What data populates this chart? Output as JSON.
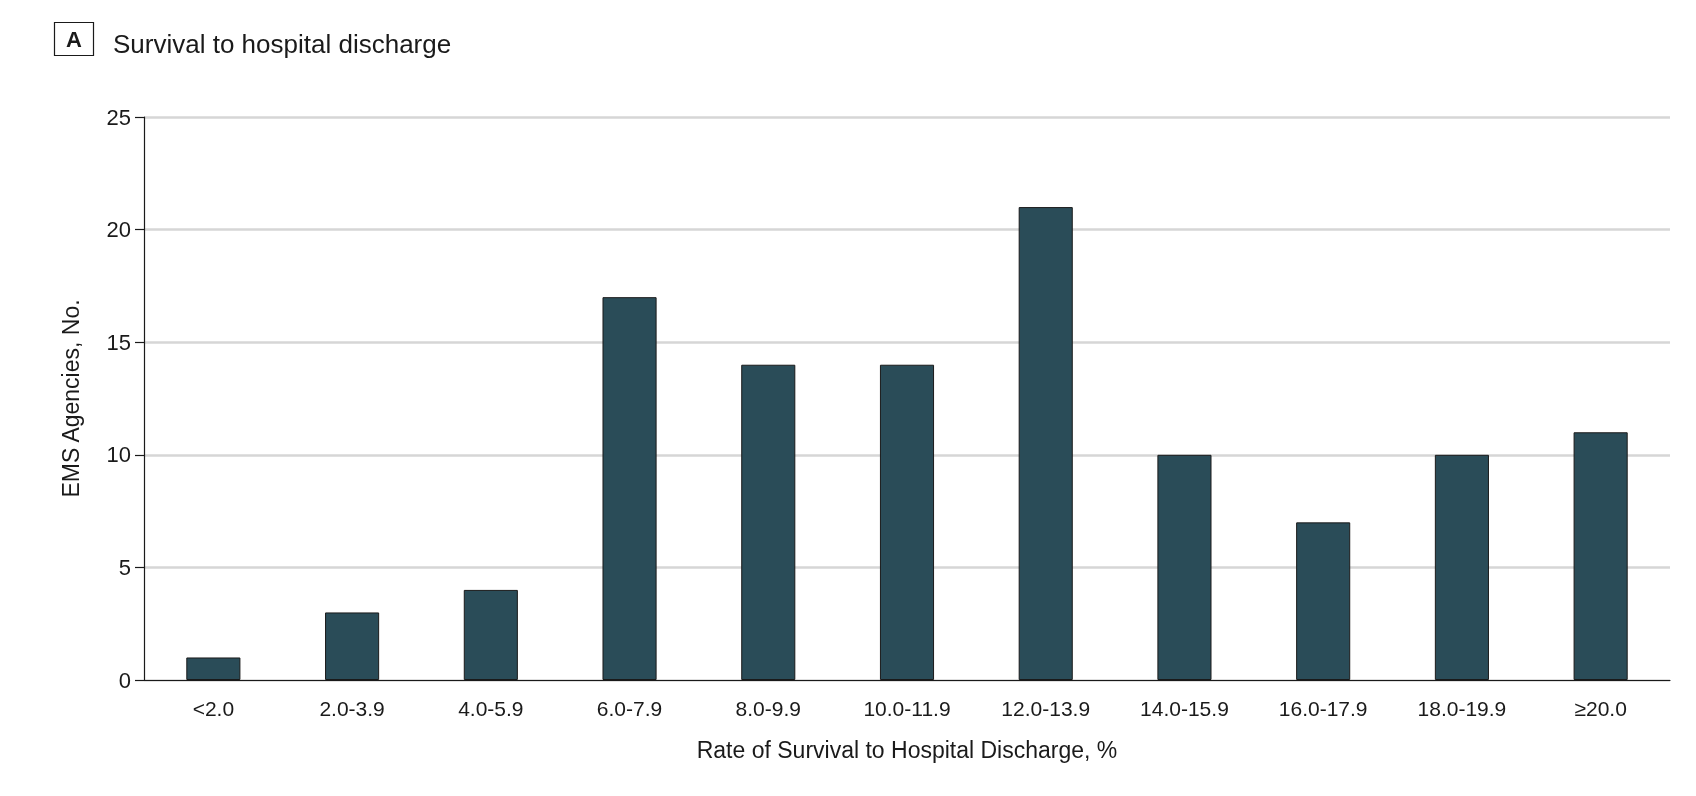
{
  "chart_data": {
    "type": "bar",
    "title": "Survival to hospital discharge",
    "annotations": [
      "A"
    ],
    "xlabel": "Rate of Survival to Hospital Discharge, %",
    "ylabel": "EMS Agencies, No.",
    "categories": [
      "<2.0",
      "2.0-3.9",
      "4.0-5.9",
      "6.0-7.9",
      "8.0-9.9",
      "10.0-11.9",
      "12.0-13.9",
      "14.0-15.9",
      "16.0-17.9",
      "18.0-19.9",
      "≥20.0"
    ],
    "values": [
      1,
      3,
      4,
      17,
      14,
      14,
      21,
      10,
      7,
      10,
      11
    ],
    "color": "#2a4c58",
    "ylim": [
      0,
      25
    ],
    "yticks": [
      0,
      5,
      10,
      15,
      20,
      25
    ],
    "grid": "y"
  }
}
